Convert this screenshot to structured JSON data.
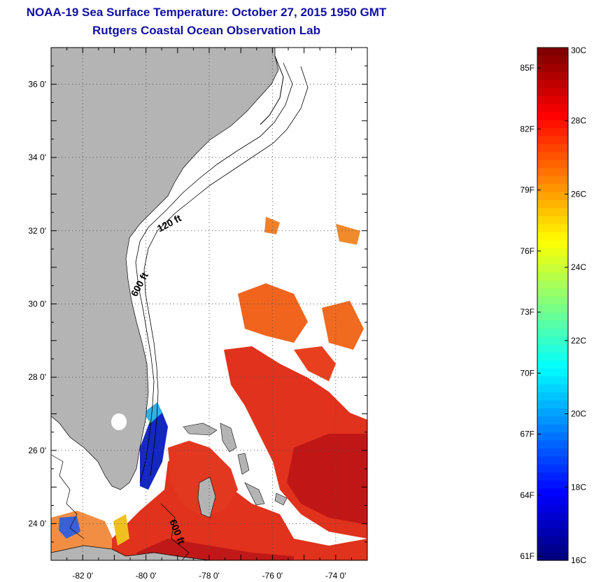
{
  "title_line1": "NOAA-19 Sea Surface Temperature:  October 27, 2015 1950 GMT",
  "title_line2": "Rutgers Coastal Ocean Observation Lab",
  "map": {
    "lon_range": [
      -83,
      -73
    ],
    "lat_range": [
      23,
      37
    ],
    "x_ticks": [
      {
        "value": -82,
        "label": "-82 0'"
      },
      {
        "value": -80,
        "label": "-80 0'"
      },
      {
        "value": -78,
        "label": "-78 0'"
      },
      {
        "value": -76,
        "label": "-76 0'"
      },
      {
        "value": -74,
        "label": "-74 0'"
      }
    ],
    "y_ticks": [
      {
        "value": 24,
        "label": "24 0'"
      },
      {
        "value": 26,
        "label": "26 0'"
      },
      {
        "value": 28,
        "label": "28 0'"
      },
      {
        "value": 30,
        "label": "30 0'"
      },
      {
        "value": 32,
        "label": "32 0'"
      },
      {
        "value": 34,
        "label": "34 0'"
      },
      {
        "value": 36,
        "label": "36 0'"
      }
    ],
    "contour_labels": [
      "120 ft",
      "600 ft",
      "600 ft"
    ],
    "colors": {
      "land": "#b4b4b4",
      "water_nodata": "#ffffff",
      "warm": "#e8281a",
      "hot": "#c81010",
      "orange": "#f06a1e",
      "cold": "#1020c8"
    }
  },
  "colorbar": {
    "min_c": 16,
    "max_c": 30,
    "fahrenheit_labels": [
      {
        "label": "85F",
        "value_f": 85
      },
      {
        "label": "82F",
        "value_f": 82
      },
      {
        "label": "79F",
        "value_f": 79
      },
      {
        "label": "76F",
        "value_f": 76
      },
      {
        "label": "73F",
        "value_f": 73
      },
      {
        "label": "70F",
        "value_f": 70
      },
      {
        "label": "67F",
        "value_f": 67
      },
      {
        "label": "64F",
        "value_f": 64
      },
      {
        "label": "61F",
        "value_f": 61
      }
    ],
    "celsius_labels": [
      {
        "label": "30C",
        "value_c": 30
      },
      {
        "label": "28C",
        "value_c": 28
      },
      {
        "label": "26C",
        "value_c": 26
      },
      {
        "label": "24C",
        "value_c": 24
      },
      {
        "label": "22C",
        "value_c": 22
      },
      {
        "label": "20C",
        "value_c": 20
      },
      {
        "label": "18C",
        "value_c": 18
      },
      {
        "label": "16C",
        "value_c": 16
      }
    ]
  }
}
